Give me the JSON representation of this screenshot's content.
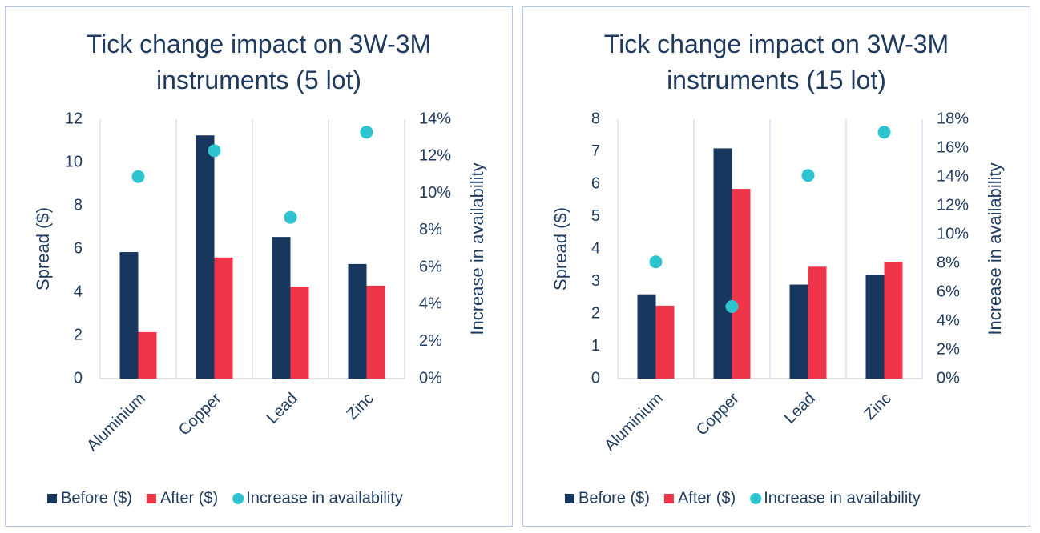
{
  "chart_data": [
    {
      "type": "bar",
      "title": "Tick change impact on 3W-3M instruments (5 lot)",
      "categories": [
        "Aluminium",
        "Copper",
        "Lead",
        "Zinc"
      ],
      "ylabel": "Spread ($)",
      "y2label": "Increase in availability",
      "ylim": [
        0,
        12
      ],
      "yticks": [
        0,
        2,
        4,
        6,
        8,
        10,
        12
      ],
      "y2lim": [
        0,
        14
      ],
      "y2ticks": [
        {
          "value": 0,
          "label": "0%"
        },
        {
          "value": 2,
          "label": "2%"
        },
        {
          "value": 4,
          "label": "4%"
        },
        {
          "value": 6,
          "label": "6%"
        },
        {
          "value": 8,
          "label": "8%"
        },
        {
          "value": 10,
          "label": "10%"
        },
        {
          "value": 12,
          "label": "12%"
        },
        {
          "value": 14,
          "label": "14%"
        }
      ],
      "legend": "bottom",
      "series": [
        {
          "name": "Before ($)",
          "type": "bar",
          "color": "#17375e",
          "values": [
            5.85,
            11.25,
            6.55,
            5.3
          ]
        },
        {
          "name": "After ($)",
          "type": "bar",
          "color": "#f0344a",
          "values": [
            2.15,
            5.6,
            4.25,
            4.3
          ]
        },
        {
          "name": "Increase in availability",
          "type": "scatter",
          "axis": "y2",
          "color": "#2ec4cf",
          "values": [
            10.9,
            12.3,
            8.7,
            13.3
          ]
        }
      ]
    },
    {
      "type": "bar",
      "title": "Tick change impact on 3W-3M instruments (15 lot)",
      "categories": [
        "Aluminium",
        "Copper",
        "Lead",
        "Zinc"
      ],
      "ylabel": "Spread ($)",
      "y2label": "Increase in availability",
      "ylim": [
        0,
        8
      ],
      "yticks": [
        0,
        1,
        2,
        3,
        4,
        5,
        6,
        7,
        8
      ],
      "y2lim": [
        0,
        18
      ],
      "y2ticks": [
        {
          "value": 0,
          "label": "0%"
        },
        {
          "value": 2,
          "label": "2%"
        },
        {
          "value": 4,
          "label": "4%"
        },
        {
          "value": 6,
          "label": "6%"
        },
        {
          "value": 8,
          "label": "8%"
        },
        {
          "value": 10,
          "label": "10%"
        },
        {
          "value": 12,
          "label": "12%"
        },
        {
          "value": 14,
          "label": "14%"
        },
        {
          "value": 16,
          "label": "16%"
        },
        {
          "value": 18,
          "label": "18%"
        }
      ],
      "legend": "bottom",
      "series": [
        {
          "name": "Before ($)",
          "type": "bar",
          "color": "#17375e",
          "values": [
            2.6,
            7.1,
            2.9,
            3.2
          ]
        },
        {
          "name": "After ($)",
          "type": "bar",
          "color": "#f0344a",
          "values": [
            2.25,
            5.85,
            3.45,
            3.6
          ]
        },
        {
          "name": "Increase in availability",
          "type": "scatter",
          "axis": "y2",
          "color": "#2ec4cf",
          "values": [
            8.1,
            5.0,
            14.1,
            17.1
          ]
        }
      ]
    }
  ]
}
